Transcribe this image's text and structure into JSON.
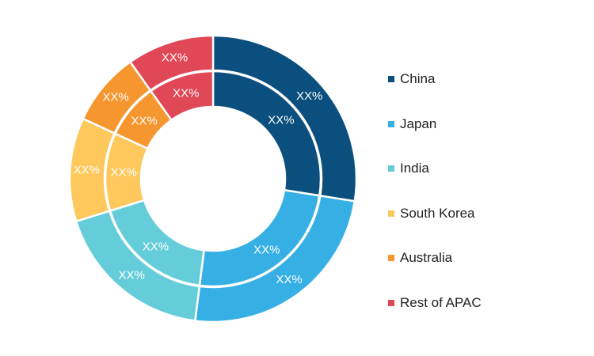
{
  "chart_data": {
    "type": "pie",
    "title": "",
    "categories": [
      "China",
      "Japan",
      "India",
      "South Korea",
      "Australia",
      "Rest of APAC"
    ],
    "colors": [
      "#0b4f7e",
      "#36b0e4",
      "#65cdd9",
      "#fec85d",
      "#f6962f",
      "#e04757"
    ],
    "series": [
      {
        "values": [
          27.5,
          24.5,
          18.2,
          11.7,
          8.3,
          9.8
        ],
        "labels": [
          "XX%",
          "XX%",
          "XX%",
          "XX%",
          "XX%",
          "XX%"
        ]
      },
      {
        "values": [
          27.5,
          24.5,
          18.2,
          11.7,
          8.3,
          9.8
        ],
        "labels": [
          "XX%",
          "XX%",
          "XX%",
          "XX%",
          "XX%",
          "XX%"
        ]
      }
    ],
    "legend_position": "right"
  }
}
